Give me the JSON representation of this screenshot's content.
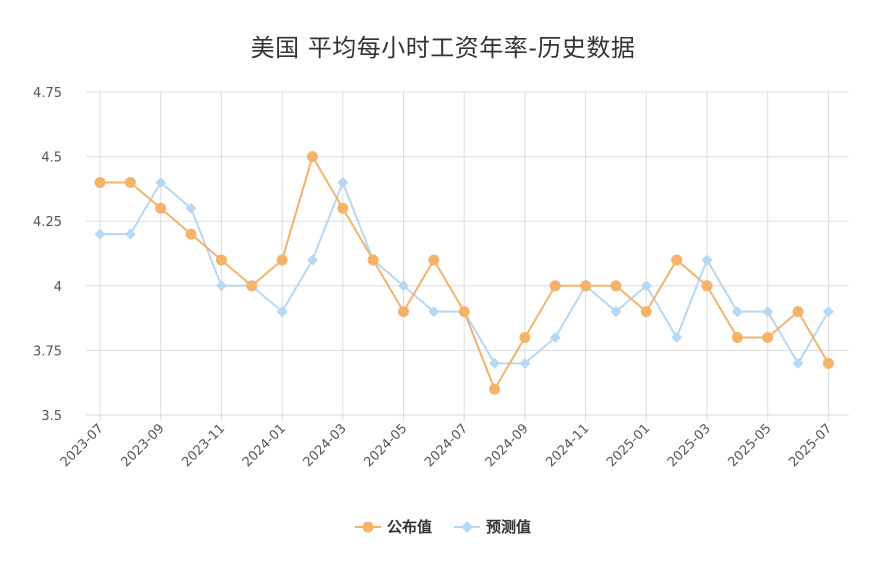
{
  "chart_data": {
    "type": "line",
    "title": "美国 平均每小时工资年率-历史数据",
    "xlabel": "",
    "ylabel": "",
    "ylim": [
      3.5,
      4.75
    ],
    "yticks": [
      "3.5",
      "3.75",
      "4",
      "4.25",
      "4.5",
      "4.75"
    ],
    "x": [
      "2023-07",
      "2023-08",
      "2023-09",
      "2023-10",
      "2023-11",
      "2023-12",
      "2024-01",
      "2024-02",
      "2024-03",
      "2024-04",
      "2024-05",
      "2024-06",
      "2024-07",
      "2024-08",
      "2024-09",
      "2024-10",
      "2024-11",
      "2024-12",
      "2025-01",
      "2025-02",
      "2025-03",
      "2025-04",
      "2025-05",
      "2025-06",
      "2025-07"
    ],
    "xtick_labels": [
      "2023-07",
      "2023-09",
      "2023-11",
      "2024-01",
      "2024-03",
      "2024-05",
      "2024-07",
      "2024-09",
      "2024-11",
      "2025-01",
      "2025-03",
      "2025-05",
      "2025-07"
    ],
    "grid": true,
    "legend_position": "bottom",
    "series": [
      {
        "name": "公布值",
        "color": "#F5B36A",
        "marker": "circle",
        "values": [
          4.4,
          4.4,
          4.3,
          4.2,
          4.1,
          4.0,
          4.1,
          4.5,
          4.3,
          4.1,
          3.9,
          4.1,
          3.9,
          3.6,
          3.8,
          4.0,
          4.0,
          4.0,
          3.9,
          4.1,
          4.0,
          3.8,
          3.8,
          3.9,
          3.7
        ]
      },
      {
        "name": "预测值",
        "color": "#B7D8F2",
        "marker": "diamond",
        "values": [
          4.2,
          4.2,
          4.4,
          4.3,
          4.0,
          4.0,
          3.9,
          4.1,
          4.4,
          4.1,
          4.0,
          3.9,
          3.9,
          3.7,
          3.7,
          3.8,
          4.0,
          3.9,
          4.0,
          3.8,
          4.1,
          3.9,
          3.9,
          3.7,
          3.9
        ]
      }
    ]
  }
}
